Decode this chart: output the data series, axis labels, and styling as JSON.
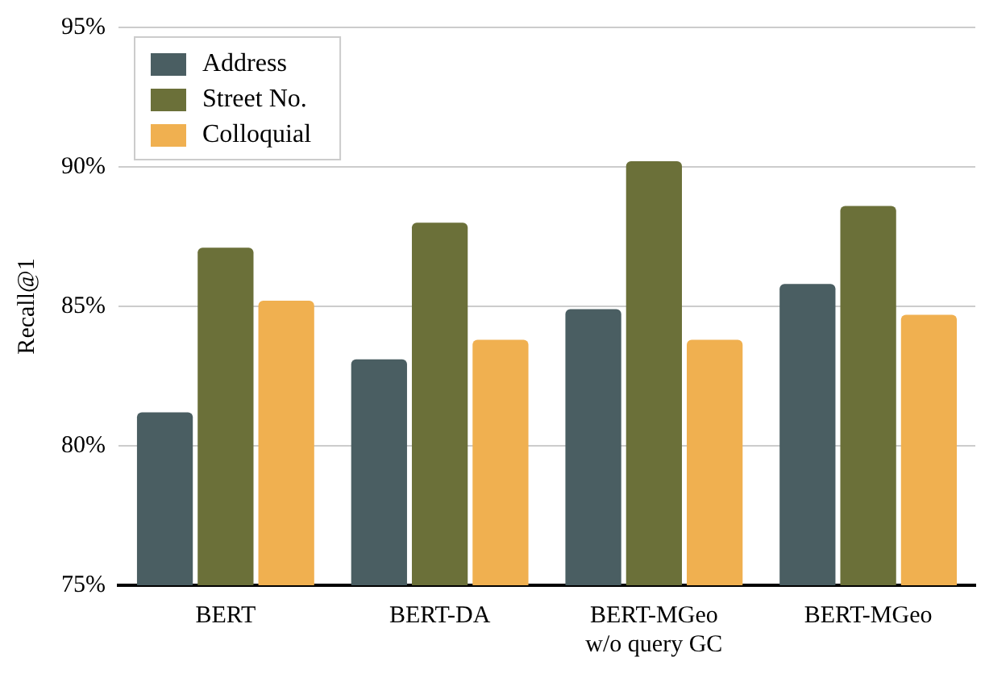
{
  "chart_data": {
    "type": "bar",
    "ylabel": "Recall@1",
    "categories": [
      "BERT",
      "BERT-DA",
      "BERT-MGeo\nw/o query GC",
      "BERT-MGeo"
    ],
    "series": [
      {
        "name": "Address",
        "color": "#4a5e62",
        "values": [
          81.2,
          83.1,
          84.9,
          85.8
        ]
      },
      {
        "name": "Street No.",
        "color": "#6b7039",
        "values": [
          87.1,
          88.0,
          90.2,
          88.6
        ]
      },
      {
        "name": "Colloquial",
        "color": "#f0b050",
        "values": [
          85.2,
          83.8,
          83.8,
          84.7
        ]
      }
    ],
    "ylim": [
      75,
      95
    ],
    "yticks": [
      {
        "value": 75,
        "label": "75%"
      },
      {
        "value": 80,
        "label": "80%"
      },
      {
        "value": 85,
        "label": "85%"
      },
      {
        "value": 90,
        "label": "90%"
      },
      {
        "value": 95,
        "label": "95%"
      }
    ],
    "grid": "y",
    "legend": "top left"
  }
}
